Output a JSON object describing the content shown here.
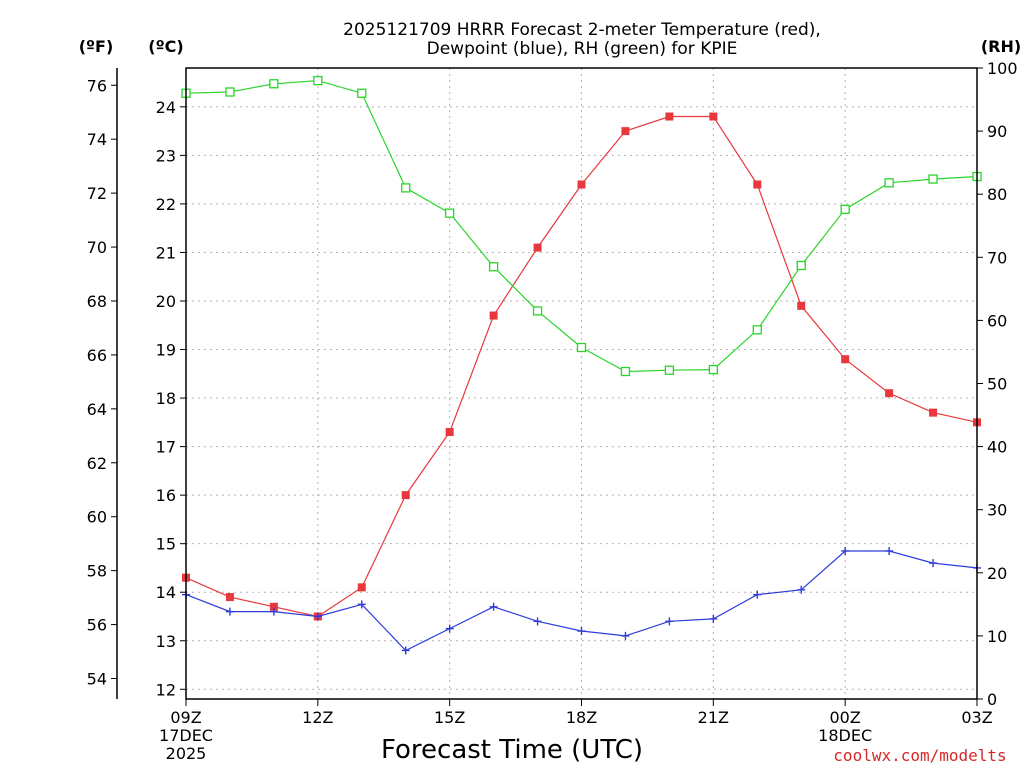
{
  "chart_data": {
    "type": "line",
    "title_line1": "2025121709 HRRR Forecast 2-meter Temperature (red),",
    "title_line2": "Dewpoint (blue), RH (green) for KPIE",
    "xlabel": "Forecast Time (UTC)",
    "credit": "coolwx.com/modelts",
    "unit_f": "(ºF)",
    "unit_c": "(ºC)",
    "unit_rh": "(RH)",
    "x_hours": [
      0,
      1,
      2,
      3,
      4,
      5,
      6,
      7,
      8,
      9,
      10,
      11,
      12,
      13,
      14,
      15,
      16,
      17,
      18
    ],
    "xlim": [
      0,
      18
    ],
    "x_ticks": [
      {
        "hour": 0,
        "lines": [
          "09Z",
          "17DEC",
          "2025"
        ]
      },
      {
        "hour": 3,
        "lines": [
          "12Z"
        ]
      },
      {
        "hour": 6,
        "lines": [
          "15Z"
        ]
      },
      {
        "hour": 9,
        "lines": [
          "18Z"
        ]
      },
      {
        "hour": 12,
        "lines": [
          "21Z"
        ]
      },
      {
        "hour": 15,
        "lines": [
          "00Z",
          "18DEC"
        ]
      },
      {
        "hour": 18,
        "lines": [
          "03Z"
        ]
      }
    ],
    "celsius_axis": {
      "lim": [
        11.8,
        24.8
      ],
      "ticks": [
        12,
        13,
        14,
        15,
        16,
        17,
        18,
        19,
        20,
        21,
        22,
        23,
        24
      ]
    },
    "fahrenheit_ticks": [
      54,
      56,
      58,
      60,
      62,
      64,
      66,
      68,
      70,
      72,
      74,
      76
    ],
    "rh_axis": {
      "lim": [
        0,
        100
      ],
      "ticks": [
        0,
        10,
        20,
        30,
        40,
        50,
        60,
        70,
        80,
        90,
        100
      ]
    },
    "series": [
      {
        "name": "2-meter Temperature",
        "units": "C",
        "color": "#e8383d",
        "marker": "filled-square",
        "values": [
          14.3,
          13.9,
          13.7,
          13.5,
          14.1,
          16.0,
          17.3,
          19.7,
          21.1,
          22.4,
          23.5,
          23.8,
          23.8,
          22.4,
          19.9,
          18.8,
          18.1,
          17.7,
          17.5
        ]
      },
      {
        "name": "Dewpoint",
        "units": "C",
        "color": "#2e3cdc",
        "marker": "plus",
        "values": [
          13.95,
          13.6,
          13.6,
          13.5,
          13.75,
          12.8,
          13.25,
          13.7,
          13.4,
          13.2,
          13.1,
          13.4,
          13.45,
          13.95,
          14.05,
          14.85,
          14.85,
          14.6,
          14.5
        ]
      },
      {
        "name": "RH",
        "units": "%",
        "color": "#2ad52a",
        "marker": "open-square",
        "values": [
          96,
          96.2,
          97.5,
          98,
          96,
          81,
          77,
          68.5,
          61.5,
          55.7,
          51.9,
          52.1,
          52.2,
          58.5,
          68.7,
          77.6,
          81.8,
          82.4,
          82.8
        ]
      }
    ]
  }
}
